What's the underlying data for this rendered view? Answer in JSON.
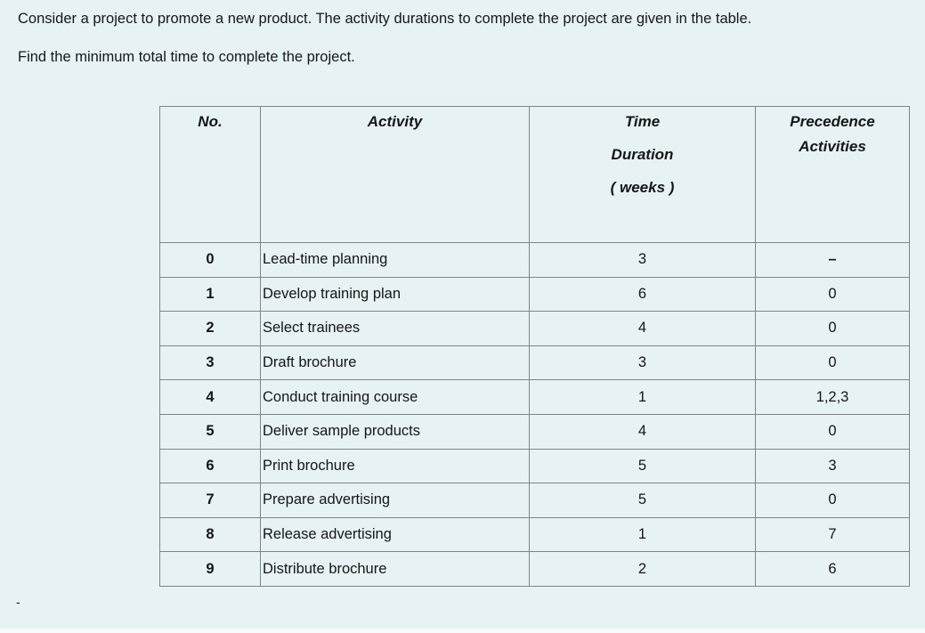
{
  "page": {
    "background_color": "#e7f2f4",
    "text_color": "#16161d",
    "border_color": "#7f8487"
  },
  "intro": {
    "line1": "Consider a project to promote a new product. The activity durations to complete the project are given in the table.",
    "line2": "Find the minimum total time to complete the project."
  },
  "table": {
    "headers": {
      "no": "No.",
      "activity": "Activity",
      "time_line1": "Time",
      "time_line2": "Duration",
      "time_line3": "( weeks )",
      "precedence_line1": "Precedence",
      "precedence_line2": "Activities"
    },
    "rows": [
      {
        "no": "0",
        "activity": "Lead-time planning",
        "time": "3",
        "precedence": "–"
      },
      {
        "no": "1",
        "activity": "Develop training plan",
        "time": "6",
        "precedence": "0"
      },
      {
        "no": "2",
        "activity": "Select trainees",
        "time": "4",
        "precedence": "0"
      },
      {
        "no": "3",
        "activity": "Draft brochure",
        "time": "3",
        "precedence": "0"
      },
      {
        "no": "4",
        "activity": "Conduct training course",
        "time": "1",
        "precedence": "1,2,3"
      },
      {
        "no": "5",
        "activity": "Deliver sample products",
        "time": "4",
        "precedence": "0"
      },
      {
        "no": "6",
        "activity": "Print brochure",
        "time": "5",
        "precedence": "3"
      },
      {
        "no": "7",
        "activity": "Prepare advertising",
        "time": "5",
        "precedence": "0"
      },
      {
        "no": "8",
        "activity": "Release advertising",
        "time": "1",
        "precedence": "7"
      },
      {
        "no": "9",
        "activity": "Distribute brochure",
        "time": "2",
        "precedence": "6"
      }
    ]
  },
  "footer": {
    "stray_dash": "-"
  }
}
